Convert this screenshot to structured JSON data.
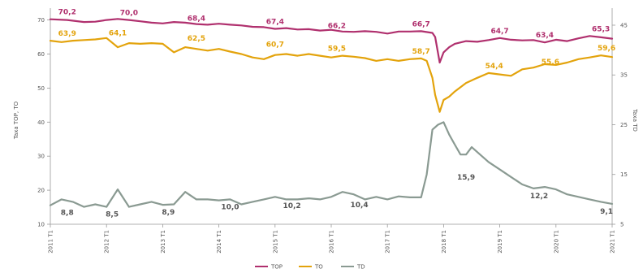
{
  "chart_data": {
    "type": "line",
    "title": "",
    "ylabel_left": "Taxa TOP, TO",
    "ylabel_right": "Taxa TD",
    "xlabel": "",
    "y_left_ticks": [
      "70",
      "60",
      "50",
      "40",
      "30",
      "20",
      "10"
    ],
    "y_left_range": [
      10,
      73
    ],
    "y_right_ticks": [
      "45",
      "35",
      "25",
      "15",
      "5"
    ],
    "y_right_range": [
      5,
      48.1
    ],
    "x_tick_labels": [
      "2011 T1",
      "2012 T1",
      "2013 T1",
      "2014 T1",
      "2015 T1",
      "2016 T1",
      "2017 T1",
      "2018 T1",
      "2019 T1",
      "2020 T1",
      "2021 T1"
    ],
    "x_range": [
      0,
      100
    ],
    "legend": [
      "TOP",
      "TO",
      "TD"
    ],
    "legend_position": "bottom-center",
    "series": [
      {
        "name": "TOP",
        "color": "#b0306e",
        "axis": "left",
        "x": [
          0,
          3,
          6,
          8,
          10,
          12,
          14,
          16,
          18,
          20,
          22,
          24,
          26,
          28,
          30,
          32,
          34,
          36,
          38,
          40,
          42,
          44,
          46,
          48,
          50,
          52,
          54,
          56,
          58,
          60,
          62,
          64,
          66,
          68,
          68.5,
          69.3,
          70,
          71,
          72,
          74,
          76,
          78,
          80,
          82,
          84,
          86,
          88,
          90,
          92,
          94,
          96,
          98,
          100
        ],
        "y": [
          70.2,
          70.0,
          69.4,
          69.5,
          70.0,
          70.3,
          70.0,
          69.6,
          69.2,
          69.0,
          69.4,
          69.2,
          68.8,
          68.6,
          68.9,
          68.6,
          68.4,
          68.0,
          67.9,
          67.4,
          67.6,
          67.2,
          67.3,
          66.9,
          67.1,
          66.6,
          66.5,
          66.7,
          66.5,
          66.0,
          66.6,
          66.6,
          66.7,
          66.2,
          65.0,
          57.5,
          60.5,
          62.0,
          63.0,
          63.8,
          63.6,
          64.1,
          64.7,
          64.2,
          64.0,
          64.1,
          63.4,
          64.2,
          63.8,
          64.6,
          65.3,
          64.9,
          64.5
        ]
      },
      {
        "name": "TO",
        "color": "#e3a30c",
        "axis": "left",
        "x": [
          0,
          2,
          4,
          6,
          8,
          10,
          12,
          14,
          16,
          18,
          20,
          22,
          24,
          26,
          28,
          30,
          32,
          34,
          36,
          38,
          40,
          42,
          44,
          46,
          48,
          50,
          52,
          54,
          56,
          58,
          60,
          62,
          64,
          66,
          67,
          68,
          68.5,
          69.3,
          70,
          71,
          72,
          74,
          76,
          78,
          80,
          82,
          84,
          86,
          88,
          90,
          92,
          94,
          96,
          98,
          100
        ],
        "y": [
          63.9,
          63.5,
          63.9,
          64.1,
          64.3,
          64.7,
          62.0,
          63.2,
          63.0,
          63.2,
          63.0,
          60.5,
          62.0,
          61.5,
          61.0,
          61.5,
          60.7,
          60.0,
          59.0,
          58.5,
          59.7,
          60.0,
          59.5,
          60.0,
          59.5,
          59.0,
          59.5,
          59.2,
          58.8,
          58.0,
          58.5,
          58.0,
          58.5,
          58.7,
          58.0,
          53.0,
          48.0,
          43.0,
          46.5,
          47.5,
          49.0,
          51.5,
          53.0,
          54.4,
          54.0,
          53.6,
          55.5,
          56.0,
          57.0,
          56.8,
          57.5,
          58.5,
          59.0,
          59.6,
          59.1
        ]
      },
      {
        "name": "TD",
        "color": "#8a9a92",
        "axis": "right",
        "x": [
          0,
          2,
          4,
          6,
          8,
          10,
          12,
          14,
          16,
          18,
          20,
          22,
          24,
          26,
          28,
          30,
          32,
          34,
          36,
          38,
          40,
          42,
          44,
          46,
          48,
          50,
          52,
          54,
          56,
          58,
          60,
          62,
          64,
          66,
          67,
          68,
          69,
          70,
          71,
          72,
          73,
          74,
          75,
          76,
          78,
          80,
          82,
          84,
          86,
          88,
          90,
          92,
          94,
          96,
          98,
          100
        ],
        "y": [
          8.8,
          10.0,
          9.5,
          8.5,
          9.0,
          8.5,
          12.0,
          8.5,
          9.0,
          9.5,
          8.9,
          9.0,
          11.5,
          10.0,
          10.0,
          9.8,
          10.0,
          9.0,
          9.5,
          10.0,
          10.5,
          10.0,
          10.0,
          10.2,
          10.0,
          10.5,
          11.5,
          11.0,
          10.0,
          10.5,
          10.0,
          10.6,
          10.4,
          10.4,
          15.0,
          24.0,
          25.0,
          25.5,
          23.0,
          21.0,
          19.0,
          19.0,
          20.5,
          19.5,
          17.5,
          16.0,
          14.5,
          13.0,
          12.2,
          12.5,
          12.0,
          11.0,
          10.5,
          10.0,
          9.5,
          9.1
        ]
      }
    ],
    "data_labels": [
      {
        "series": "TOP",
        "x": 3,
        "y": 70.2,
        "text": "70,2"
      },
      {
        "series": "TOP",
        "x": 14,
        "y": 70.0,
        "text": "70,0"
      },
      {
        "series": "TOP",
        "x": 26,
        "y": 68.4,
        "text": "68,4"
      },
      {
        "series": "TOP",
        "x": 40,
        "y": 67.4,
        "text": "67,4"
      },
      {
        "series": "TOP",
        "x": 51,
        "y": 66.2,
        "text": "66,2"
      },
      {
        "series": "TOP",
        "x": 66,
        "y": 66.7,
        "text": "66,7"
      },
      {
        "series": "TOP",
        "x": 80,
        "y": 64.7,
        "text": "64,7"
      },
      {
        "series": "TOP",
        "x": 88,
        "y": 63.4,
        "text": "63,4"
      },
      {
        "series": "TOP",
        "x": 98,
        "y": 65.3,
        "text": "65,3"
      },
      {
        "series": "TO",
        "x": 3,
        "y": 63.9,
        "text": "63,9"
      },
      {
        "series": "TO",
        "x": 12,
        "y": 64.1,
        "text": "64,1"
      },
      {
        "series": "TO",
        "x": 26,
        "y": 62.5,
        "text": "62,5"
      },
      {
        "series": "TO",
        "x": 40,
        "y": 60.7,
        "text": "60,7"
      },
      {
        "series": "TO",
        "x": 51,
        "y": 59.5,
        "text": "59,5"
      },
      {
        "series": "TO",
        "x": 66,
        "y": 58.7,
        "text": "58,7"
      },
      {
        "series": "TO",
        "x": 79,
        "y": 54.4,
        "text": "54,4"
      },
      {
        "series": "TO",
        "x": 89,
        "y": 55.6,
        "text": "55,6"
      },
      {
        "series": "TO",
        "x": 99,
        "y": 59.6,
        "text": "59,6"
      },
      {
        "series": "TD",
        "x": 3,
        "y": 8.8,
        "text": "8,8"
      },
      {
        "series": "TD",
        "x": 11,
        "y": 8.5,
        "text": "8,5"
      },
      {
        "series": "TD",
        "x": 21,
        "y": 8.9,
        "text": "8,9"
      },
      {
        "series": "TD",
        "x": 32,
        "y": 10.0,
        "text": "10,0"
      },
      {
        "series": "TD",
        "x": 43,
        "y": 10.2,
        "text": "10,2"
      },
      {
        "series": "TD",
        "x": 55,
        "y": 10.4,
        "text": "10,4"
      },
      {
        "series": "TD",
        "x": 74,
        "y": 15.9,
        "text": "15,9"
      },
      {
        "series": "TD",
        "x": 87,
        "y": 12.2,
        "text": "12,2"
      },
      {
        "series": "TD",
        "x": 99,
        "y": 9.1,
        "text": "9,1"
      }
    ]
  }
}
